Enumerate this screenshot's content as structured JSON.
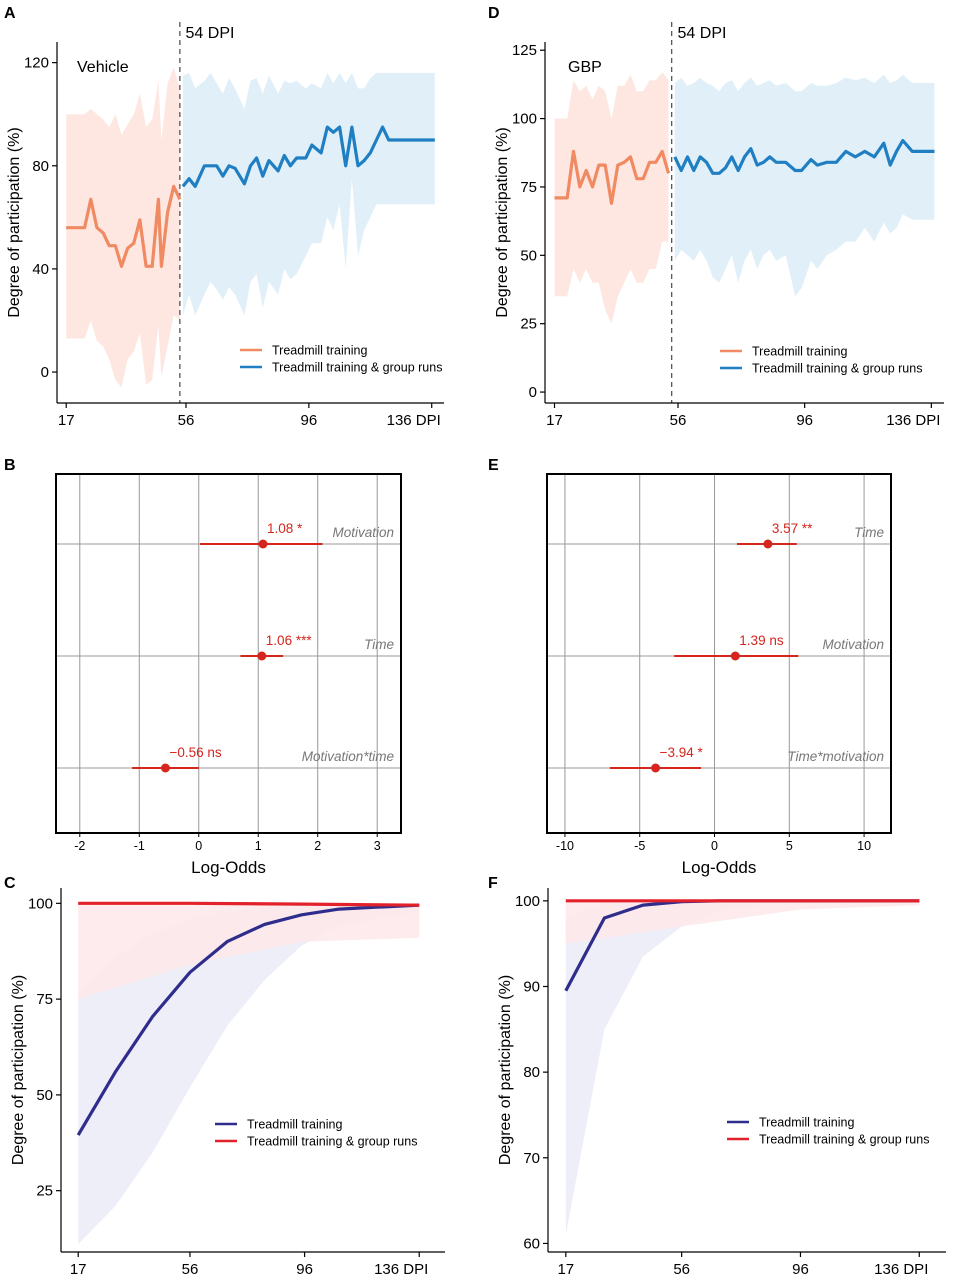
{
  "chart_data": [
    {
      "panel": "A",
      "type": "line",
      "title": "Vehicle",
      "vline_label": "54 DPI",
      "xlabel": "",
      "ylabel": "Degree of participation (%)",
      "xticks": [
        "17",
        "56",
        "96",
        "136 DPI"
      ],
      "xtick_values": [
        17,
        56,
        96,
        136
      ],
      "yticks": [
        "0",
        "40",
        "80",
        "120"
      ],
      "ytick_values": [
        0,
        40,
        80,
        120
      ],
      "xlim": [
        14,
        140
      ],
      "ylim": [
        -12,
        128
      ],
      "vline_x": 54,
      "legend": [
        "Treadmill training",
        "Treadmill training & group runs"
      ],
      "series": [
        {
          "name": "Treadmill training",
          "color": "#ef8a62",
          "band_color": "#fde3da",
          "x": [
            17,
            19,
            21,
            23,
            25,
            27,
            29,
            31,
            33,
            35,
            37,
            39,
            41,
            43,
            45,
            47,
            48,
            50,
            52,
            54
          ],
          "y": [
            56,
            56,
            56,
            56,
            67,
            56,
            54,
            49,
            49,
            41,
            48,
            50,
            59,
            41,
            41,
            67,
            41,
            62,
            72,
            67
          ],
          "lower": [
            13,
            13,
            13,
            13,
            20,
            12,
            10,
            5,
            -3,
            -6,
            5,
            8,
            15,
            -5,
            -3,
            18,
            -2,
            10,
            22,
            20
          ],
          "upper": [
            100,
            100,
            100,
            100,
            102,
            100,
            98,
            95,
            100,
            92,
            96,
            100,
            108,
            95,
            98,
            113,
            90,
            112,
            118,
            110
          ]
        },
        {
          "name": "Treadmill training & group runs",
          "color": "#1f7fc2",
          "band_color": "#dcedf7",
          "x": [
            55,
            57,
            59,
            62,
            64,
            66,
            68,
            70,
            72,
            75,
            77,
            79,
            81,
            83,
            86,
            88,
            90,
            92,
            95,
            97,
            100,
            102,
            104,
            106,
            108,
            110,
            112,
            114,
            116,
            118,
            120,
            122,
            125,
            128,
            131,
            134,
            137
          ],
          "y": [
            72,
            75,
            72,
            80,
            80,
            80,
            76,
            80,
            79,
            73,
            80,
            83,
            76,
            82,
            78,
            84,
            80,
            83,
            83,
            88,
            85,
            95,
            93,
            95,
            80,
            95,
            80,
            82,
            85,
            90,
            95,
            90,
            90,
            90,
            90,
            90,
            90
          ],
          "lower": [
            22,
            30,
            22,
            30,
            35,
            32,
            28,
            33,
            30,
            22,
            35,
            38,
            25,
            35,
            30,
            40,
            36,
            38,
            45,
            50,
            50,
            60,
            55,
            65,
            40,
            75,
            45,
            55,
            60,
            65,
            65,
            65,
            65,
            65,
            65,
            65,
            65
          ],
          "upper": [
            115,
            116,
            110,
            113,
            116,
            112,
            108,
            114,
            110,
            102,
            113,
            114,
            108,
            115,
            108,
            113,
            112,
            113,
            110,
            112,
            110,
            116,
            112,
            116,
            112,
            116,
            110,
            110,
            114,
            116,
            116,
            116,
            116,
            116,
            116,
            116,
            116
          ]
        }
      ]
    },
    {
      "panel": "D",
      "type": "line",
      "title": "GBP",
      "vline_label": "54 DPI",
      "xlabel": "",
      "ylabel": "Degree of participation (%)",
      "xticks": [
        "17",
        "56",
        "96",
        "136 DPI"
      ],
      "xtick_values": [
        17,
        56,
        96,
        136
      ],
      "yticks": [
        "0",
        "25",
        "50",
        "75",
        "100",
        "125"
      ],
      "ytick_values": [
        0,
        25,
        50,
        75,
        100,
        125
      ],
      "xlim": [
        14,
        140
      ],
      "ylim": [
        -4,
        128
      ],
      "vline_x": 54,
      "legend": [
        "Treadmill training",
        "Treadmill training & group runs"
      ],
      "series": [
        {
          "name": "Treadmill training",
          "color": "#ef8a62",
          "band_color": "#fde3da",
          "x": [
            17,
            19,
            21,
            23,
            25,
            27,
            29,
            31,
            33,
            35,
            37,
            39,
            41,
            43,
            45,
            47,
            49,
            51,
            53
          ],
          "y": [
            71,
            71,
            71,
            88,
            75,
            81,
            75,
            83,
            83,
            69,
            83,
            84,
            86,
            78,
            78,
            84,
            84,
            88,
            80
          ],
          "lower": [
            35,
            35,
            35,
            45,
            40,
            45,
            40,
            40,
            30,
            25,
            35,
            40,
            45,
            40,
            40,
            45,
            45,
            55,
            55
          ],
          "upper": [
            100,
            100,
            100,
            114,
            110,
            112,
            107,
            112,
            110,
            100,
            112,
            112,
            116,
            110,
            110,
            114,
            114,
            117,
            114
          ]
        },
        {
          "name": "Treadmill training & group runs",
          "color": "#1f7fc2",
          "band_color": "#dcedf7",
          "x": [
            55,
            57,
            59,
            61,
            63,
            65,
            67,
            69,
            71,
            73,
            75,
            77,
            79,
            81,
            83,
            85,
            87,
            90,
            93,
            95,
            98,
            100,
            103,
            106,
            109,
            112,
            115,
            118,
            121,
            123,
            125,
            127,
            130,
            133,
            137
          ],
          "y": [
            86,
            81,
            86,
            81,
            86,
            84,
            80,
            80,
            82,
            86,
            81,
            86,
            89,
            83,
            84,
            86,
            84,
            84,
            81,
            81,
            85,
            83,
            84,
            84,
            88,
            86,
            88,
            86,
            91,
            83,
            88,
            92,
            88,
            88,
            88
          ],
          "lower": [
            48,
            52,
            50,
            48,
            52,
            48,
            42,
            40,
            45,
            50,
            40,
            48,
            52,
            45,
            50,
            52,
            48,
            50,
            35,
            38,
            48,
            45,
            50,
            52,
            55,
            55,
            60,
            55,
            62,
            58,
            60,
            65,
            63,
            63,
            63
          ],
          "upper": [
            113,
            115,
            112,
            113,
            115,
            113,
            112,
            110,
            113,
            114,
            110,
            113,
            115,
            112,
            113,
            114,
            112,
            113,
            110,
            110,
            113,
            112,
            112,
            113,
            115,
            114,
            115,
            113,
            116,
            113,
            114,
            116,
            113,
            113,
            113
          ]
        }
      ]
    },
    {
      "panel": "B",
      "type": "forest",
      "xlabel": "Log-Odds",
      "xticks": [
        "-2",
        "-1",
        "0",
        "1",
        "2",
        "3"
      ],
      "xtick_values": [
        -2,
        -1,
        0,
        1,
        2,
        3
      ],
      "xlim": [
        -2.4,
        3.4
      ],
      "terms": [
        {
          "term": "Motivation",
          "estimate": 1.08,
          "label": "1.08 *",
          "ci": [
            0.02,
            2.08
          ]
        },
        {
          "term": "Time",
          "estimate": 1.06,
          "label": "1.06 ***",
          "ci": [
            0.7,
            1.42
          ]
        },
        {
          "term": "Motivation*time",
          "estimate": -0.56,
          "label": "−0.56  ns",
          "ci": [
            -1.12,
            0.0
          ]
        }
      ]
    },
    {
      "panel": "E",
      "type": "forest",
      "xlabel": "Log-Odds",
      "xticks": [
        "-10",
        "-5",
        "0",
        "5",
        "10"
      ],
      "xtick_values": [
        -10,
        -5,
        0,
        5,
        10
      ],
      "xlim": [
        -11.2,
        11.8
      ],
      "terms": [
        {
          "term": "Time",
          "estimate": 3.57,
          "label": "3.57 **",
          "ci": [
            1.5,
            5.5
          ]
        },
        {
          "term": "Motivation",
          "estimate": 1.39,
          "label": "1.39  ns",
          "ci": [
            -2.7,
            5.6
          ]
        },
        {
          "term": "Time*motivation",
          "estimate": -3.94,
          "label": "−3.94 *",
          "ci": [
            -7.0,
            -0.9
          ]
        }
      ]
    },
    {
      "panel": "C",
      "type": "line",
      "xlabel": "",
      "ylabel": "Degree of participation (%)",
      "xticks": [
        "17",
        "56",
        "96",
        "136 DPI"
      ],
      "xtick_values": [
        17,
        56,
        96,
        136
      ],
      "yticks": [
        "25",
        "50",
        "75",
        "100"
      ],
      "ytick_values": [
        25,
        50,
        75,
        100
      ],
      "xlim": [
        11,
        145
      ],
      "ylim": [
        9,
        104
      ],
      "legend": [
        "Treadmill training",
        "Treadmill training & group runs"
      ],
      "series": [
        {
          "name": "Treadmill training",
          "color": "#2e2d8c",
          "band_color": "#ebebf8",
          "x": [
            17,
            30,
            43,
            56,
            69,
            82,
            95,
            108,
            121,
            136
          ],
          "y": [
            39.5,
            56,
            70.5,
            82,
            90,
            94.5,
            97,
            98.5,
            99,
            99.5
          ],
          "lower": [
            11,
            21,
            35,
            52,
            68,
            80,
            89,
            94,
            96,
            98
          ],
          "upper": [
            76,
            86,
            92,
            96,
            98,
            99,
            99.5,
            99.7,
            99.8,
            100
          ]
        },
        {
          "name": "Treadmill training & group runs",
          "color": "#e3212b",
          "band_color": "#fde8ea",
          "x": [
            17,
            56,
            96,
            136
          ],
          "y": [
            100,
            100,
            99.8,
            99.5
          ],
          "lower": [
            75,
            84,
            90,
            91
          ],
          "upper": [
            100,
            100,
            100,
            100
          ]
        }
      ]
    },
    {
      "panel": "F",
      "type": "line",
      "xlabel": "",
      "ylabel": "Degree of participation (%)",
      "xticks": [
        "17",
        "56",
        "96",
        "136 DPI"
      ],
      "xtick_values": [
        17,
        56,
        96,
        136
      ],
      "yticks": [
        "60",
        "70",
        "80",
        "90",
        "100"
      ],
      "ytick_values": [
        60,
        70,
        80,
        90,
        100
      ],
      "xlim": [
        11,
        145
      ],
      "ylim": [
        59,
        101.5
      ],
      "legend": [
        "Treadmill training",
        "Treadmill training & group runs"
      ],
      "series": [
        {
          "name": "Treadmill training",
          "color": "#2e2d8c",
          "band_color": "#ebebf8",
          "x": [
            17,
            30,
            43,
            56,
            69,
            82,
            95,
            108,
            121,
            136
          ],
          "y": [
            89.5,
            98,
            99.5,
            99.9,
            100,
            100,
            100,
            100,
            100,
            100
          ],
          "lower": [
            61,
            85,
            93.5,
            97,
            98.8,
            99.5,
            99.8,
            100,
            100,
            100
          ],
          "upper": [
            98,
            99.8,
            100,
            100,
            100,
            100,
            100,
            100,
            100,
            100
          ]
        },
        {
          "name": "Treadmill training & group runs",
          "color": "#e3212b",
          "band_color": "#fde8ea",
          "x": [
            17,
            56,
            96,
            136
          ],
          "y": [
            100,
            100,
            100,
            100
          ],
          "lower": [
            95,
            97,
            99,
            99.5
          ],
          "upper": [
            100,
            100,
            100,
            100
          ]
        }
      ]
    }
  ]
}
